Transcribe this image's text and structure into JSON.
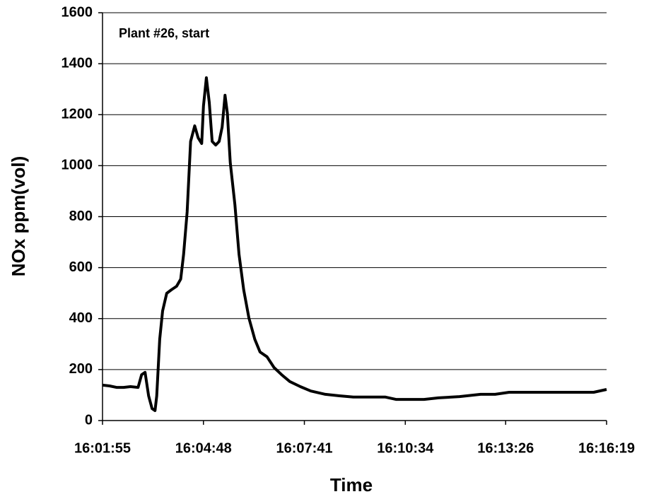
{
  "chart_data": {
    "type": "line",
    "annotation": "Plant #26, start",
    "x_label": "Time",
    "y_label": "NOx ppm(vol)",
    "x": [
      "16:01:55",
      "16:02:07",
      "16:02:19",
      "16:02:31",
      "16:02:43",
      "16:02:56",
      "16:03:02",
      "16:03:08",
      "16:03:14",
      "16:03:20",
      "16:03:25",
      "16:03:28",
      "16:03:33",
      "16:03:38",
      "16:03:45",
      "16:03:53",
      "16:04:02",
      "16:04:09",
      "16:04:14",
      "16:04:20",
      "16:04:26",
      "16:04:33",
      "16:04:39",
      "16:04:45",
      "16:04:48",
      "16:04:53",
      "16:04:58",
      "16:05:03",
      "16:05:09",
      "16:05:15",
      "16:05:20",
      "16:05:25",
      "16:05:29",
      "16:05:34",
      "16:05:42",
      "16:05:49",
      "16:05:57",
      "16:06:06",
      "16:06:16",
      "16:06:25",
      "16:06:37",
      "16:06:49",
      "16:07:02",
      "16:07:16",
      "16:07:34",
      "16:07:52",
      "16:08:17",
      "16:08:41",
      "16:09:05",
      "16:09:29",
      "16:10:00",
      "16:10:18",
      "16:10:42",
      "16:11:06",
      "16:11:31",
      "16:12:07",
      "16:12:43",
      "16:13:08",
      "16:13:32",
      "16:14:08",
      "16:14:45",
      "16:15:21",
      "16:15:57",
      "16:16:19"
    ],
    "values": [
      139,
      136,
      130,
      130,
      133,
      130,
      180,
      189,
      97,
      47,
      39,
      97,
      319,
      430,
      499,
      513,
      527,
      555,
      652,
      818,
      1095,
      1156,
      1109,
      1087,
      1234,
      1345,
      1248,
      1095,
      1081,
      1095,
      1151,
      1276,
      1206,
      1012,
      846,
      652,
      513,
      402,
      319,
      269,
      250,
      208,
      180,
      153,
      133,
      116,
      103,
      97,
      92,
      92,
      92,
      83,
      83,
      83,
      89,
      94,
      103,
      103,
      111,
      111,
      111,
      111,
      111,
      122
    ],
    "color": "#000000",
    "xlim": [
      "16:01:55",
      "16:16:19"
    ],
    "xticks": [
      "16:01:55",
      "16:04:48",
      "16:07:41",
      "16:10:34",
      "16:13:26",
      "16:16:19"
    ],
    "ylim": [
      0,
      1600
    ],
    "yticks": [
      0,
      200,
      400,
      600,
      800,
      1000,
      1200,
      1400,
      1600
    ],
    "grid": true
  }
}
